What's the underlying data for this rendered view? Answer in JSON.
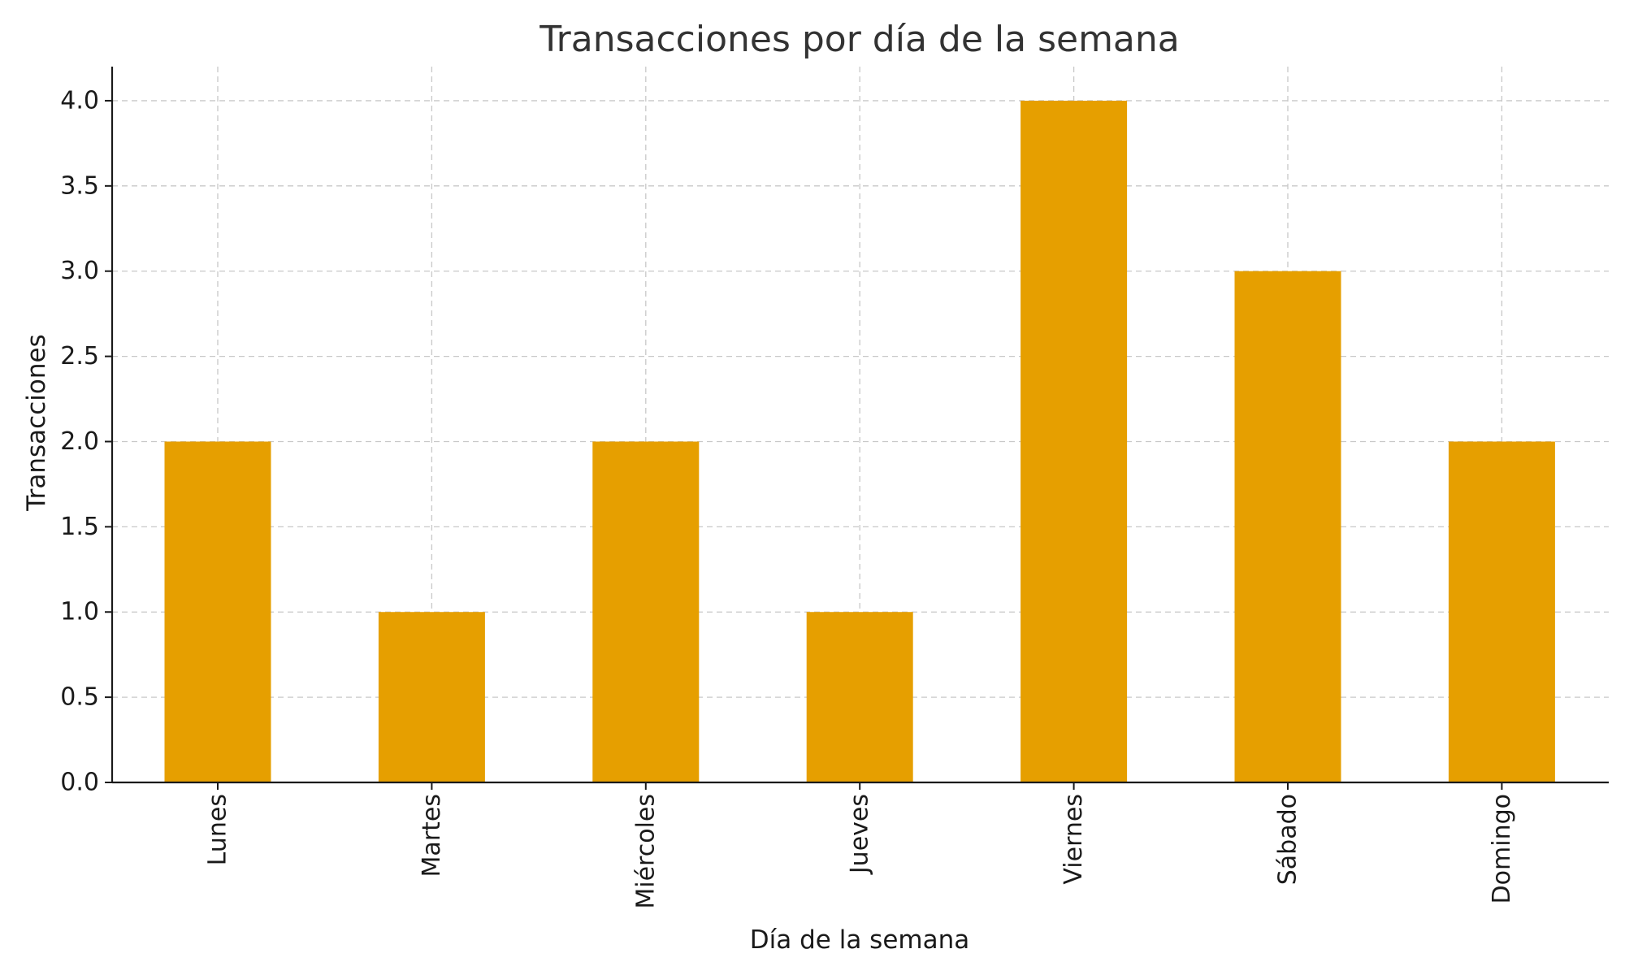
{
  "chart_data": {
    "type": "bar",
    "title": "Transacciones por día de la semana",
    "xlabel": "Día de la semana",
    "ylabel": "Transacciones",
    "categories": [
      "Lunes",
      "Martes",
      "Miércoles",
      "Jueves",
      "Viernes",
      "Sábado",
      "Domingo"
    ],
    "values": [
      2,
      1,
      2,
      1,
      4,
      3,
      2
    ],
    "ylim": [
      0,
      4.2
    ],
    "yticks": [
      0.0,
      0.5,
      1.0,
      1.5,
      2.0,
      2.5,
      3.0,
      3.5,
      4.0
    ],
    "ytick_labels": [
      "0.0",
      "0.5",
      "1.0",
      "1.5",
      "2.0",
      "2.5",
      "3.0",
      "3.5",
      "4.0"
    ],
    "grid": true,
    "bar_color": "#E69F00",
    "legend": null
  }
}
